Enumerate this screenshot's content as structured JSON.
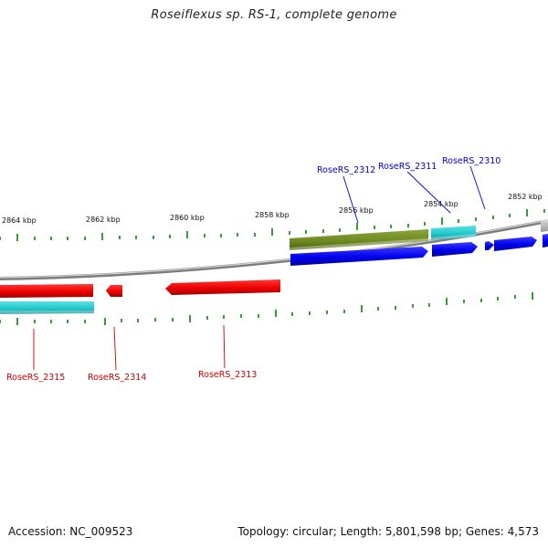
{
  "title": "Roseiflexus sp. RS-1, complete genome",
  "footer": {
    "accession_label": "Accession:",
    "accession": "NC_009523",
    "topology_label": "Topology:",
    "topology": "circular",
    "length_label": "Length:",
    "length": "5,801,598 bp",
    "genes_label": "Genes:",
    "genes": "4,573"
  },
  "ruler": {
    "tick_labels": [
      "2864 kbp",
      "2862 kbp",
      "2860 kbp",
      "2858 kbp",
      "2856 kbp",
      "2854 kbp",
      "2852 kbp"
    ]
  },
  "genes": {
    "forward": [
      "RoseRS_2312",
      "RoseRS_2311",
      "RoseRS_2310"
    ],
    "reverse": [
      "RoseRS_2315",
      "RoseRS_2314",
      "RoseRS_2313"
    ]
  },
  "colors": {
    "backbone": "#8c8c8c",
    "forward_cds": "#0000ee",
    "reverse_cds": "#ee0000",
    "rna_feature": "#22c8cc",
    "other_feature": "#6f8a22",
    "ticks": "#008800",
    "forward_label": "#0000cc",
    "reverse_label": "#cc0000"
  }
}
